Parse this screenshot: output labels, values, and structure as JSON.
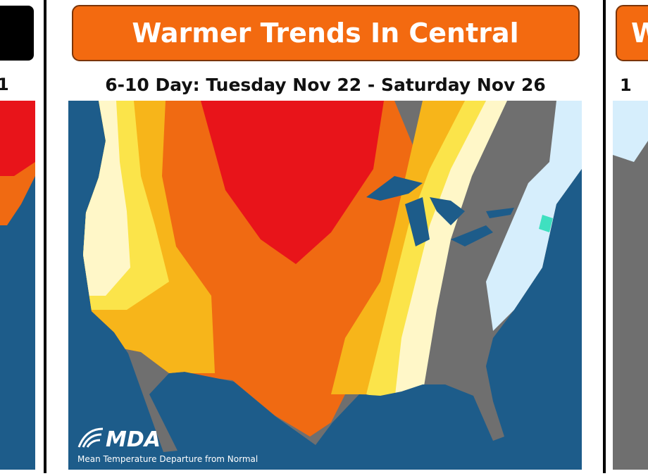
{
  "left_panel": {
    "subtitle": "1"
  },
  "main_panel": {
    "title": "Warmer Trends In Central",
    "subtitle": "6-10 Day: Tuesday Nov 22 - Saturday Nov 26",
    "logo": "MDA",
    "caption": "Mean Temperature Departure from Normal"
  },
  "right_panel": {
    "title": "W",
    "subtitle": "1"
  }
}
